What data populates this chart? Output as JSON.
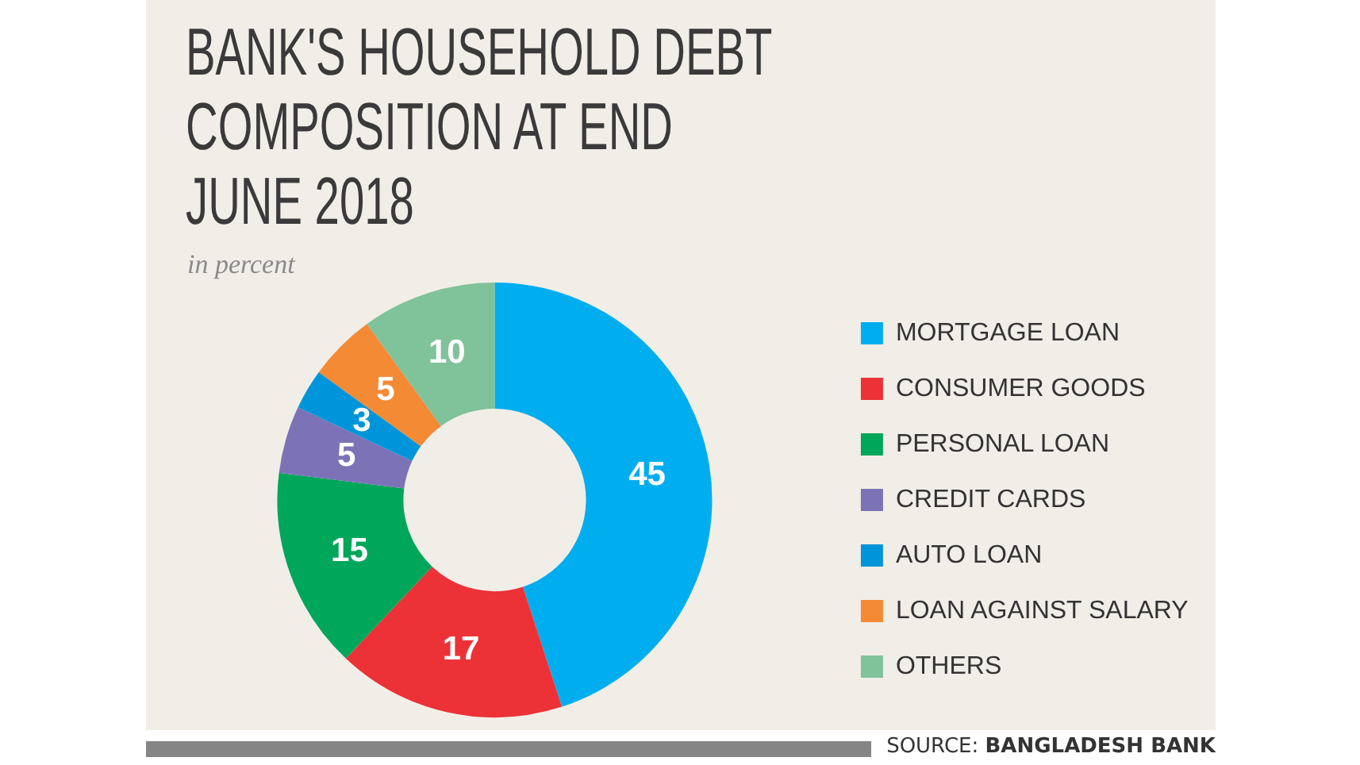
{
  "chart_data": {
    "type": "donut",
    "title": "BANK'S HOUSEHOLD DEBT COMPOSITION AT END JUNE 2018",
    "subtitle": "in percent",
    "categories": [
      "MORTGAGE LOAN",
      "CONSUMER GOODS",
      "PERSONAL LOAN",
      "CREDIT CARDS",
      "AUTO LOAN",
      "LOAN AGAINST SALARY",
      "OTHERS"
    ],
    "values": [
      45,
      17,
      15,
      5,
      3,
      5,
      10
    ],
    "colors": [
      "#00aeef",
      "#ec3237",
      "#00a65a",
      "#7b73b6",
      "#0095da",
      "#f58a35",
      "#80c29a"
    ],
    "data_labels": true,
    "legend": "right",
    "annotations": [
      "SOURCE: BANGLADESH BANK"
    ]
  }
}
